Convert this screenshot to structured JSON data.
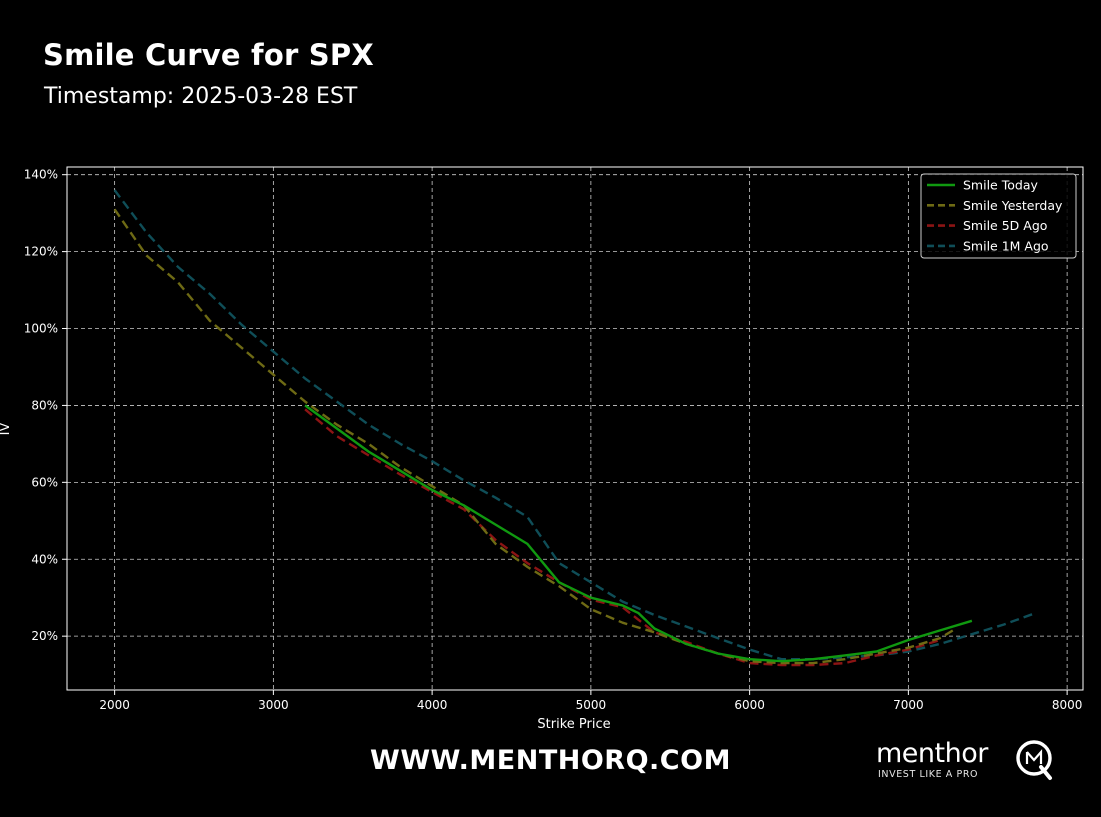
{
  "header": {
    "title": "Smile Curve for SPX",
    "subtitle": "Timestamp: 2025-03-28 EST"
  },
  "footer": {
    "website": "WWW.MENTHORQ.COM",
    "logo_word": "menthor",
    "logo_tagline": "INVEST LIKE A PRO"
  },
  "colors": {
    "background": "#000000",
    "grid": "#cccccc",
    "axes": "#ffffff"
  },
  "chart_data": {
    "type": "line",
    "title": "",
    "xlabel": "Strike Price",
    "ylabel": "IV",
    "xlim": [
      1700,
      8100
    ],
    "ylim": [
      0.06,
      1.42
    ],
    "x_ticks": [
      2000,
      3000,
      4000,
      5000,
      6000,
      7000,
      8000
    ],
    "x_tick_labels": [
      "2000",
      "3000",
      "4000",
      "5000",
      "6000",
      "7000",
      "8000"
    ],
    "y_ticks": [
      0.2,
      0.4,
      0.6,
      0.8,
      1.0,
      1.2,
      1.4
    ],
    "y_tick_labels": [
      "20%",
      "40%",
      "60%",
      "80%",
      "100%",
      "120%",
      "140%"
    ],
    "grid": true,
    "legend_position": "top-right",
    "series": [
      {
        "name": "Smile Today",
        "color": "#109910",
        "dashed": false,
        "width": 2.4,
        "x": [
          3200,
          3400,
          3600,
          3800,
          4000,
          4200,
          4400,
          4600,
          4800,
          5000,
          5200,
          5300,
          5400,
          5500,
          5600,
          5800,
          6000,
          6200,
          6400,
          6600,
          6800,
          7000,
          7200,
          7400
        ],
        "y": [
          0.8,
          0.74,
          0.68,
          0.63,
          0.58,
          0.54,
          0.49,
          0.44,
          0.34,
          0.3,
          0.28,
          0.26,
          0.22,
          0.2,
          0.18,
          0.155,
          0.14,
          0.135,
          0.14,
          0.15,
          0.16,
          0.19,
          0.215,
          0.24
        ]
      },
      {
        "name": "Smile Yesterday",
        "color": "#6e6a14",
        "dashed": true,
        "width": 2.4,
        "x": [
          2000,
          2200,
          2400,
          2600,
          2800,
          3000,
          3200,
          3400,
          3600,
          3800,
          4000,
          4200,
          4400,
          4600,
          4800,
          5000,
          5200,
          5400,
          5600,
          5800,
          6000,
          6200,
          6400,
          6600,
          6800,
          7000,
          7200,
          7300
        ],
        "y": [
          1.31,
          1.19,
          1.12,
          1.02,
          0.95,
          0.88,
          0.81,
          0.75,
          0.7,
          0.64,
          0.59,
          0.54,
          0.44,
          0.38,
          0.33,
          0.27,
          0.235,
          0.21,
          0.18,
          0.155,
          0.135,
          0.13,
          0.13,
          0.14,
          0.155,
          0.17,
          0.195,
          0.22
        ]
      },
      {
        "name": "Smile 5D Ago",
        "color": "#8c1414",
        "dashed": true,
        "width": 2.4,
        "x": [
          3200,
          3400,
          3600,
          3800,
          4000,
          4200,
          4400,
          4600,
          4800,
          5000,
          5200,
          5400,
          5600,
          5800,
          6000,
          6200,
          6400,
          6600,
          6800,
          7000,
          7200
        ],
        "y": [
          0.79,
          0.72,
          0.67,
          0.62,
          0.575,
          0.53,
          0.45,
          0.39,
          0.34,
          0.295,
          0.275,
          0.21,
          0.185,
          0.155,
          0.13,
          0.125,
          0.125,
          0.13,
          0.15,
          0.165,
          0.19
        ]
      },
      {
        "name": "Smile 1M Ago",
        "color": "#0f4e58",
        "dashed": true,
        "width": 2.4,
        "x": [
          2000,
          2200,
          2400,
          2600,
          2800,
          3000,
          3200,
          3400,
          3600,
          3800,
          4000,
          4200,
          4400,
          4600,
          4800,
          5000,
          5200,
          5400,
          5600,
          5800,
          6000,
          6200,
          6400,
          6600,
          6800,
          7000,
          7200,
          7400,
          7600,
          7800
        ],
        "y": [
          1.36,
          1.25,
          1.16,
          1.09,
          1.01,
          0.94,
          0.87,
          0.81,
          0.75,
          0.7,
          0.655,
          0.605,
          0.56,
          0.51,
          0.39,
          0.34,
          0.29,
          0.255,
          0.225,
          0.195,
          0.165,
          0.14,
          0.14,
          0.145,
          0.15,
          0.16,
          0.18,
          0.205,
          0.23,
          0.26
        ]
      }
    ]
  }
}
